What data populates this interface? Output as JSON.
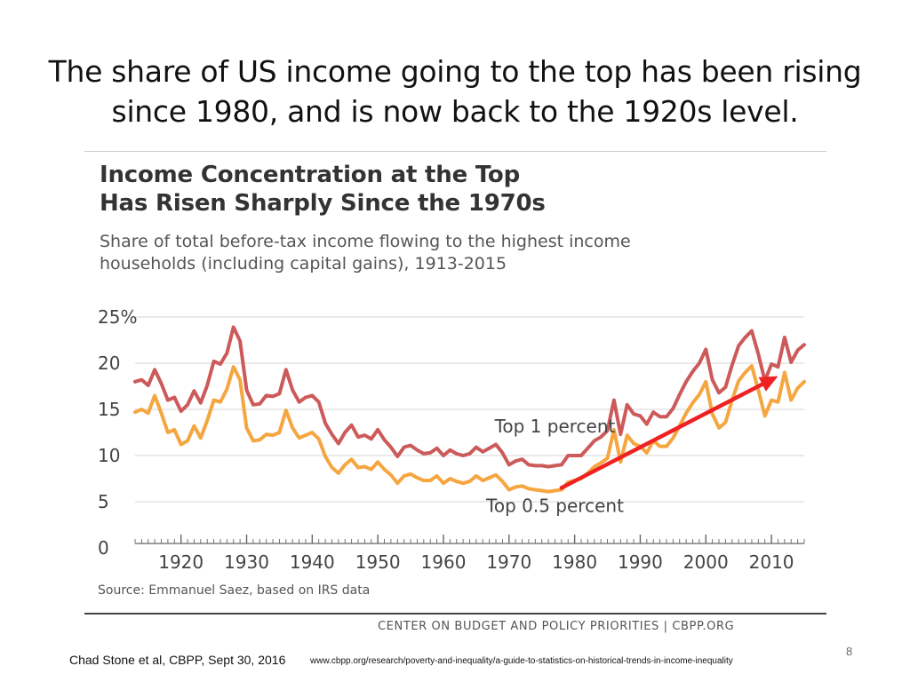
{
  "slide": {
    "title_line1": "The share of US income going to the top has been rising",
    "title_line2": "since 1980, and is now back to the 1920s level.",
    "page_number": "8",
    "footer_citation": "Chad Stone et al, CBPP, Sept 30, 2016",
    "footer_url": "www.cbpp.org/research/poverty-and-inequality/a-guide-to-statistics-on-historical-trends-in-income-inequality"
  },
  "chart_data": {
    "type": "line",
    "title_line1": "Income Concentration at the Top",
    "title_line2": "Has Risen Sharply Since the 1970s",
    "subtitle_line1": "Share of total before-tax income flowing to the highest income",
    "subtitle_line2": "households (including capital gains), 1913-2015",
    "source": "Source: Emmanuel Saez, based on IRS data",
    "credit": "CENTER ON BUDGET AND POLICY PRIORITIES | CBPP.ORG",
    "xlim": [
      1913,
      2015
    ],
    "ylim": [
      0,
      25
    ],
    "y_ticks": [
      {
        "value": 0,
        "label": "0"
      },
      {
        "value": 5,
        "label": "5"
      },
      {
        "value": 10,
        "label": "10"
      },
      {
        "value": 15,
        "label": "15"
      },
      {
        "value": 20,
        "label": "20"
      },
      {
        "value": 25,
        "label": "25%"
      }
    ],
    "x_ticks": [
      {
        "value": 1920,
        "label": "1920"
      },
      {
        "value": 1930,
        "label": "1930"
      },
      {
        "value": 1940,
        "label": "1940"
      },
      {
        "value": 1950,
        "label": "1950"
      },
      {
        "value": 1960,
        "label": "1960"
      },
      {
        "value": 1970,
        "label": "1970"
      },
      {
        "value": 1980,
        "label": "1980"
      },
      {
        "value": 1990,
        "label": "1990"
      },
      {
        "value": 2000,
        "label": "2000"
      },
      {
        "value": 2010,
        "label": "2010"
      }
    ],
    "grid": true,
    "series": [
      {
        "name": "Top 1 percent",
        "color": "#cd5a5a",
        "x": [
          1913,
          1914,
          1915,
          1916,
          1917,
          1918,
          1919,
          1920,
          1921,
          1922,
          1923,
          1924,
          1925,
          1926,
          1927,
          1928,
          1929,
          1930,
          1931,
          1932,
          1933,
          1934,
          1935,
          1936,
          1937,
          1938,
          1939,
          1940,
          1941,
          1942,
          1943,
          1944,
          1945,
          1946,
          1947,
          1948,
          1949,
          1950,
          1951,
          1952,
          1953,
          1954,
          1955,
          1956,
          1957,
          1958,
          1959,
          1960,
          1961,
          1962,
          1963,
          1964,
          1965,
          1966,
          1967,
          1968,
          1969,
          1970,
          1971,
          1972,
          1973,
          1974,
          1975,
          1976,
          1977,
          1978,
          1979,
          1980,
          1981,
          1982,
          1983,
          1984,
          1985,
          1986,
          1987,
          1988,
          1989,
          1990,
          1991,
          1992,
          1993,
          1994,
          1995,
          1996,
          1997,
          1998,
          1999,
          2000,
          2001,
          2002,
          2003,
          2004,
          2005,
          2006,
          2007,
          2008,
          2009,
          2010,
          2011,
          2012,
          2013,
          2014,
          2015
        ],
        "y": [
          18.0,
          18.2,
          17.6,
          19.3,
          17.8,
          16.0,
          16.3,
          14.8,
          15.5,
          17.0,
          15.7,
          17.6,
          20.2,
          19.9,
          21.1,
          23.9,
          22.4,
          17.1,
          15.5,
          15.6,
          16.5,
          16.4,
          16.7,
          19.3,
          17.1,
          15.8,
          16.3,
          16.5,
          15.8,
          13.5,
          12.3,
          11.3,
          12.5,
          13.3,
          12.0,
          12.2,
          11.8,
          12.8,
          11.7,
          10.9,
          9.9,
          10.9,
          11.1,
          10.6,
          10.2,
          10.3,
          10.8,
          10.0,
          10.6,
          10.2,
          10.0,
          10.2,
          10.9,
          10.4,
          10.8,
          11.2,
          10.3,
          9.0,
          9.4,
          9.6,
          9.0,
          8.9,
          8.9,
          8.8,
          8.9,
          9.0,
          10.0,
          10.0,
          10.0,
          10.8,
          11.6,
          12.0,
          12.7,
          16.0,
          12.3,
          15.5,
          14.5,
          14.3,
          13.4,
          14.7,
          14.2,
          14.2,
          15.1,
          16.6,
          18.0,
          19.1,
          20.0,
          21.5,
          18.2,
          16.8,
          17.4,
          19.8,
          21.9,
          22.8,
          23.5,
          21.0,
          18.1,
          19.9,
          19.6,
          22.8,
          20.1,
          21.4,
          22.0
        ]
      },
      {
        "name": "Top 0.5 percent",
        "color": "#f5a640",
        "x": [
          1913,
          1914,
          1915,
          1916,
          1917,
          1918,
          1919,
          1920,
          1921,
          1922,
          1923,
          1924,
          1925,
          1926,
          1927,
          1928,
          1929,
          1930,
          1931,
          1932,
          1933,
          1934,
          1935,
          1936,
          1937,
          1938,
          1939,
          1940,
          1941,
          1942,
          1943,
          1944,
          1945,
          1946,
          1947,
          1948,
          1949,
          1950,
          1951,
          1952,
          1953,
          1954,
          1955,
          1956,
          1957,
          1958,
          1959,
          1960,
          1961,
          1962,
          1963,
          1964,
          1965,
          1966,
          1967,
          1968,
          1969,
          1970,
          1971,
          1972,
          1973,
          1974,
          1975,
          1976,
          1977,
          1978,
          1979,
          1980,
          1981,
          1982,
          1983,
          1984,
          1985,
          1986,
          1987,
          1988,
          1989,
          1990,
          1991,
          1992,
          1993,
          1994,
          1995,
          1996,
          1997,
          1998,
          1999,
          2000,
          2001,
          2002,
          2003,
          2004,
          2005,
          2006,
          2007,
          2008,
          2009,
          2010,
          2011,
          2012,
          2013,
          2014,
          2015
        ],
        "y": [
          14.7,
          15.0,
          14.6,
          16.5,
          14.6,
          12.5,
          12.8,
          11.2,
          11.6,
          13.2,
          11.9,
          13.8,
          16.0,
          15.8,
          17.2,
          19.6,
          18.2,
          13.0,
          11.6,
          11.7,
          12.3,
          12.2,
          12.5,
          14.9,
          13.0,
          11.9,
          12.2,
          12.5,
          11.8,
          9.9,
          8.7,
          8.1,
          9.0,
          9.6,
          8.7,
          8.8,
          8.5,
          9.3,
          8.5,
          7.9,
          7.0,
          7.8,
          8.0,
          7.6,
          7.3,
          7.3,
          7.8,
          7.0,
          7.5,
          7.2,
          7.0,
          7.2,
          7.8,
          7.3,
          7.6,
          7.9,
          7.2,
          6.3,
          6.6,
          6.7,
          6.4,
          6.3,
          6.2,
          6.1,
          6.2,
          6.3,
          7.1,
          7.3,
          7.5,
          8.1,
          8.8,
          9.2,
          9.7,
          12.8,
          9.3,
          12.2,
          11.3,
          11.0,
          10.3,
          11.6,
          11.0,
          11.0,
          11.9,
          13.2,
          14.6,
          15.7,
          16.6,
          18.0,
          14.5,
          13.0,
          13.6,
          16.0,
          18.1,
          19.0,
          19.7,
          17.1,
          14.3,
          16.0,
          15.8,
          19.0,
          16.0,
          17.3,
          18.0
        ]
      }
    ],
    "annotations": [
      {
        "text": "Top 1 percent",
        "x": 1977,
        "y": 12.5
      },
      {
        "text": "Top 0.5 percent",
        "x": 1977,
        "y": 3.9
      }
    ],
    "overlay_arrow": {
      "color": "#ee2222",
      "from": {
        "x": 1978,
        "y": 6.5
      },
      "to": {
        "x": 2011,
        "y": 18.6
      }
    }
  }
}
